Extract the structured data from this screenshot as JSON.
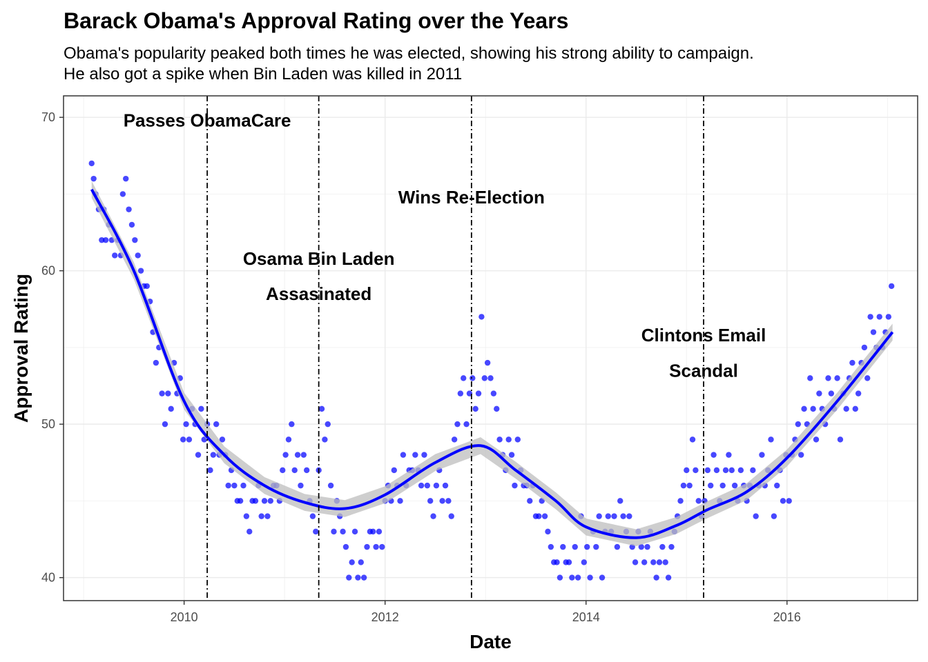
{
  "chart_data": {
    "type": "scatter",
    "title": "Barack Obama's Approval Rating over the Years",
    "subtitle_lines": [
      "Obama's popularity peaked both times he was elected, showing his strong ability to campaign.",
      "He also got a spike when Bin Laden was killed in 2011"
    ],
    "xlabel": "Date",
    "ylabel": "Approval Rating",
    "xlim": [
      2008.8,
      2017.3
    ],
    "ylim": [
      38.5,
      71.4
    ],
    "x_ticks": [
      2010,
      2012,
      2014,
      2016
    ],
    "y_ticks": [
      40,
      50,
      60,
      70
    ],
    "grid": true,
    "point_color": "#0000ff",
    "smooth_color": "#0000ff",
    "ribbon_color": "#bebebe",
    "vlines": [
      {
        "x": 2010.23,
        "label_lines": [
          "Passes ObamaCare"
        ],
        "label_y": [
          69.8
        ]
      },
      {
        "x": 2011.34,
        "label_lines": [
          "Osama Bin Laden",
          "Assasinated"
        ],
        "label_y": [
          60.8,
          58.5
        ]
      },
      {
        "x": 2012.86,
        "label_lines": [
          "Wins Re-Election"
        ],
        "label_y": [
          64.8
        ]
      },
      {
        "x": 2015.17,
        "label_lines": [
          "Clintons Email",
          "Scandal"
        ],
        "label_y": [
          55.8,
          53.5
        ]
      }
    ],
    "smooth": {
      "x": [
        2009.08,
        2009.5,
        2010.0,
        2010.4,
        2010.8,
        2011.2,
        2011.6,
        2012.0,
        2012.5,
        2012.95,
        2013.3,
        2013.7,
        2014.0,
        2014.5,
        2014.9,
        2015.2,
        2015.6,
        2016.0,
        2016.5,
        2017.05
      ],
      "y": [
        65.3,
        60.0,
        51.5,
        48.0,
        46.0,
        44.9,
        44.5,
        45.4,
        47.5,
        48.6,
        47.0,
        45.0,
        43.3,
        42.6,
        43.4,
        44.4,
        45.6,
        47.8,
        51.5,
        56.0
      ]
    },
    "points": [
      [
        2009.08,
        67
      ],
      [
        2009.1,
        66
      ],
      [
        2009.12,
        65
      ],
      [
        2009.15,
        64
      ],
      [
        2009.18,
        62
      ],
      [
        2009.2,
        64
      ],
      [
        2009.22,
        62
      ],
      [
        2009.25,
        63
      ],
      [
        2009.28,
        62
      ],
      [
        2009.31,
        61
      ],
      [
        2009.34,
        62
      ],
      [
        2009.37,
        61
      ],
      [
        2009.39,
        65
      ],
      [
        2009.42,
        66
      ],
      [
        2009.45,
        64
      ],
      [
        2009.48,
        63
      ],
      [
        2009.51,
        62
      ],
      [
        2009.54,
        61
      ],
      [
        2009.57,
        60
      ],
      [
        2009.6,
        59
      ],
      [
        2009.63,
        59
      ],
      [
        2009.66,
        58
      ],
      [
        2009.69,
        56
      ],
      [
        2009.72,
        54
      ],
      [
        2009.75,
        55
      ],
      [
        2009.78,
        52
      ],
      [
        2009.81,
        50
      ],
      [
        2009.84,
        52
      ],
      [
        2009.87,
        51
      ],
      [
        2009.9,
        54
      ],
      [
        2009.93,
        52
      ],
      [
        2009.96,
        53
      ],
      [
        2009.99,
        49
      ],
      [
        2010.02,
        50
      ],
      [
        2010.05,
        49
      ],
      [
        2010.08,
        51
      ],
      [
        2010.11,
        50
      ],
      [
        2010.14,
        48
      ],
      [
        2010.17,
        51
      ],
      [
        2010.2,
        49
      ],
      [
        2010.23,
        50
      ],
      [
        2010.26,
        47
      ],
      [
        2010.29,
        48
      ],
      [
        2010.32,
        50
      ],
      [
        2010.35,
        48
      ],
      [
        2010.38,
        49
      ],
      [
        2010.41,
        48
      ],
      [
        2010.44,
        46
      ],
      [
        2010.47,
        47
      ],
      [
        2010.5,
        46
      ],
      [
        2010.53,
        45
      ],
      [
        2010.56,
        45
      ],
      [
        2010.59,
        46
      ],
      [
        2010.62,
        44
      ],
      [
        2010.65,
        43
      ],
      [
        2010.68,
        45
      ],
      [
        2010.71,
        45
      ],
      [
        2010.74,
        46
      ],
      [
        2010.77,
        44
      ],
      [
        2010.8,
        45
      ],
      [
        2010.83,
        44
      ],
      [
        2010.86,
        45
      ],
      [
        2010.89,
        46
      ],
      [
        2010.92,
        46
      ],
      [
        2010.95,
        45
      ],
      [
        2010.98,
        47
      ],
      [
        2011.01,
        48
      ],
      [
        2011.04,
        49
      ],
      [
        2011.07,
        50
      ],
      [
        2011.1,
        47
      ],
      [
        2011.13,
        48
      ],
      [
        2011.16,
        46
      ],
      [
        2011.19,
        48
      ],
      [
        2011.22,
        47
      ],
      [
        2011.25,
        45
      ],
      [
        2011.28,
        44
      ],
      [
        2011.31,
        43
      ],
      [
        2011.34,
        47
      ],
      [
        2011.37,
        51
      ],
      [
        2011.4,
        49
      ],
      [
        2011.43,
        50
      ],
      [
        2011.46,
        46
      ],
      [
        2011.49,
        43
      ],
      [
        2011.52,
        45
      ],
      [
        2011.55,
        44
      ],
      [
        2011.58,
        43
      ],
      [
        2011.61,
        42
      ],
      [
        2011.64,
        40
      ],
      [
        2011.67,
        41
      ],
      [
        2011.7,
        43
      ],
      [
        2011.73,
        40
      ],
      [
        2011.76,
        41
      ],
      [
        2011.79,
        40
      ],
      [
        2011.82,
        42
      ],
      [
        2011.85,
        43
      ],
      [
        2011.88,
        43
      ],
      [
        2011.91,
        42
      ],
      [
        2011.94,
        43
      ],
      [
        2011.97,
        42
      ],
      [
        2012.0,
        45
      ],
      [
        2012.03,
        46
      ],
      [
        2012.06,
        45
      ],
      [
        2012.09,
        47
      ],
      [
        2012.12,
        46
      ],
      [
        2012.15,
        45
      ],
      [
        2012.18,
        48
      ],
      [
        2012.21,
        46
      ],
      [
        2012.24,
        47
      ],
      [
        2012.27,
        47
      ],
      [
        2012.3,
        48
      ],
      [
        2012.33,
        47
      ],
      [
        2012.36,
        46
      ],
      [
        2012.39,
        48
      ],
      [
        2012.42,
        46
      ],
      [
        2012.45,
        45
      ],
      [
        2012.48,
        44
      ],
      [
        2012.51,
        46
      ],
      [
        2012.54,
        47
      ],
      [
        2012.57,
        45
      ],
      [
        2012.6,
        46
      ],
      [
        2012.63,
        45
      ],
      [
        2012.66,
        44
      ],
      [
        2012.69,
        49
      ],
      [
        2012.72,
        50
      ],
      [
        2012.75,
        52
      ],
      [
        2012.78,
        53
      ],
      [
        2012.81,
        50
      ],
      [
        2012.84,
        52
      ],
      [
        2012.87,
        53
      ],
      [
        2012.9,
        51
      ],
      [
        2012.93,
        52
      ],
      [
        2012.96,
        57
      ],
      [
        2012.99,
        53
      ],
      [
        2013.02,
        54
      ],
      [
        2013.05,
        53
      ],
      [
        2013.08,
        52
      ],
      [
        2013.11,
        51
      ],
      [
        2013.14,
        49
      ],
      [
        2013.17,
        48
      ],
      [
        2013.2,
        47
      ],
      [
        2013.23,
        49
      ],
      [
        2013.26,
        48
      ],
      [
        2013.29,
        46
      ],
      [
        2013.32,
        49
      ],
      [
        2013.35,
        47
      ],
      [
        2013.38,
        46
      ],
      [
        2013.41,
        46
      ],
      [
        2013.44,
        45
      ],
      [
        2013.47,
        46
      ],
      [
        2013.5,
        44
      ],
      [
        2013.53,
        44
      ],
      [
        2013.56,
        45
      ],
      [
        2013.59,
        44
      ],
      [
        2013.62,
        43
      ],
      [
        2013.65,
        42
      ],
      [
        2013.68,
        41
      ],
      [
        2013.71,
        41
      ],
      [
        2013.74,
        40
      ],
      [
        2013.77,
        42
      ],
      [
        2013.8,
        41
      ],
      [
        2013.83,
        41
      ],
      [
        2013.86,
        40
      ],
      [
        2013.89,
        42
      ],
      [
        2013.92,
        40
      ],
      [
        2013.95,
        44
      ],
      [
        2013.98,
        41
      ],
      [
        2014.01,
        42
      ],
      [
        2014.04,
        40
      ],
      [
        2014.07,
        43
      ],
      [
        2014.1,
        42
      ],
      [
        2014.13,
        44
      ],
      [
        2014.16,
        40
      ],
      [
        2014.19,
        43
      ],
      [
        2014.22,
        44
      ],
      [
        2014.25,
        43
      ],
      [
        2014.28,
        44
      ],
      [
        2014.31,
        42
      ],
      [
        2014.34,
        45
      ],
      [
        2014.37,
        44
      ],
      [
        2014.4,
        43
      ],
      [
        2014.43,
        44
      ],
      [
        2014.46,
        42
      ],
      [
        2014.49,
        41
      ],
      [
        2014.52,
        43
      ],
      [
        2014.55,
        42
      ],
      [
        2014.58,
        41
      ],
      [
        2014.61,
        42
      ],
      [
        2014.64,
        43
      ],
      [
        2014.67,
        41
      ],
      [
        2014.7,
        40
      ],
      [
        2014.73,
        41
      ],
      [
        2014.76,
        42
      ],
      [
        2014.79,
        41
      ],
      [
        2014.82,
        40
      ],
      [
        2014.85,
        42
      ],
      [
        2014.88,
        43
      ],
      [
        2014.91,
        44
      ],
      [
        2014.94,
        45
      ],
      [
        2014.97,
        46
      ],
      [
        2015.0,
        47
      ],
      [
        2015.03,
        46
      ],
      [
        2015.06,
        49
      ],
      [
        2015.09,
        47
      ],
      [
        2015.12,
        45
      ],
      [
        2015.15,
        44
      ],
      [
        2015.18,
        45
      ],
      [
        2015.21,
        47
      ],
      [
        2015.24,
        46
      ],
      [
        2015.27,
        48
      ],
      [
        2015.3,
        47
      ],
      [
        2015.33,
        45
      ],
      [
        2015.36,
        46
      ],
      [
        2015.39,
        47
      ],
      [
        2015.42,
        48
      ],
      [
        2015.45,
        47
      ],
      [
        2015.48,
        46
      ],
      [
        2015.51,
        45
      ],
      [
        2015.54,
        47
      ],
      [
        2015.57,
        46
      ],
      [
        2015.6,
        45
      ],
      [
        2015.63,
        46
      ],
      [
        2015.66,
        47
      ],
      [
        2015.69,
        44
      ],
      [
        2015.72,
        46
      ],
      [
        2015.75,
        48
      ],
      [
        2015.78,
        46
      ],
      [
        2015.81,
        47
      ],
      [
        2015.84,
        49
      ],
      [
        2015.87,
        44
      ],
      [
        2015.9,
        46
      ],
      [
        2015.93,
        47
      ],
      [
        2015.96,
        45
      ],
      [
        2015.99,
        48
      ],
      [
        2016.02,
        45
      ],
      [
        2016.05,
        48
      ],
      [
        2016.08,
        49
      ],
      [
        2016.11,
        50
      ],
      [
        2016.14,
        48
      ],
      [
        2016.17,
        51
      ],
      [
        2016.2,
        50
      ],
      [
        2016.23,
        53
      ],
      [
        2016.26,
        51
      ],
      [
        2016.29,
        49
      ],
      [
        2016.32,
        52
      ],
      [
        2016.35,
        51
      ],
      [
        2016.38,
        50
      ],
      [
        2016.41,
        53
      ],
      [
        2016.44,
        52
      ],
      [
        2016.47,
        51
      ],
      [
        2016.5,
        53
      ],
      [
        2016.53,
        49
      ],
      [
        2016.56,
        52
      ],
      [
        2016.59,
        51
      ],
      [
        2016.62,
        53
      ],
      [
        2016.65,
        54
      ],
      [
        2016.68,
        51
      ],
      [
        2016.71,
        52
      ],
      [
        2016.74,
        54
      ],
      [
        2016.77,
        55
      ],
      [
        2016.8,
        53
      ],
      [
        2016.83,
        57
      ],
      [
        2016.86,
        56
      ],
      [
        2016.89,
        55
      ],
      [
        2016.92,
        57
      ],
      [
        2016.95,
        55
      ],
      [
        2016.98,
        56
      ],
      [
        2017.01,
        57
      ],
      [
        2017.04,
        59
      ]
    ]
  }
}
